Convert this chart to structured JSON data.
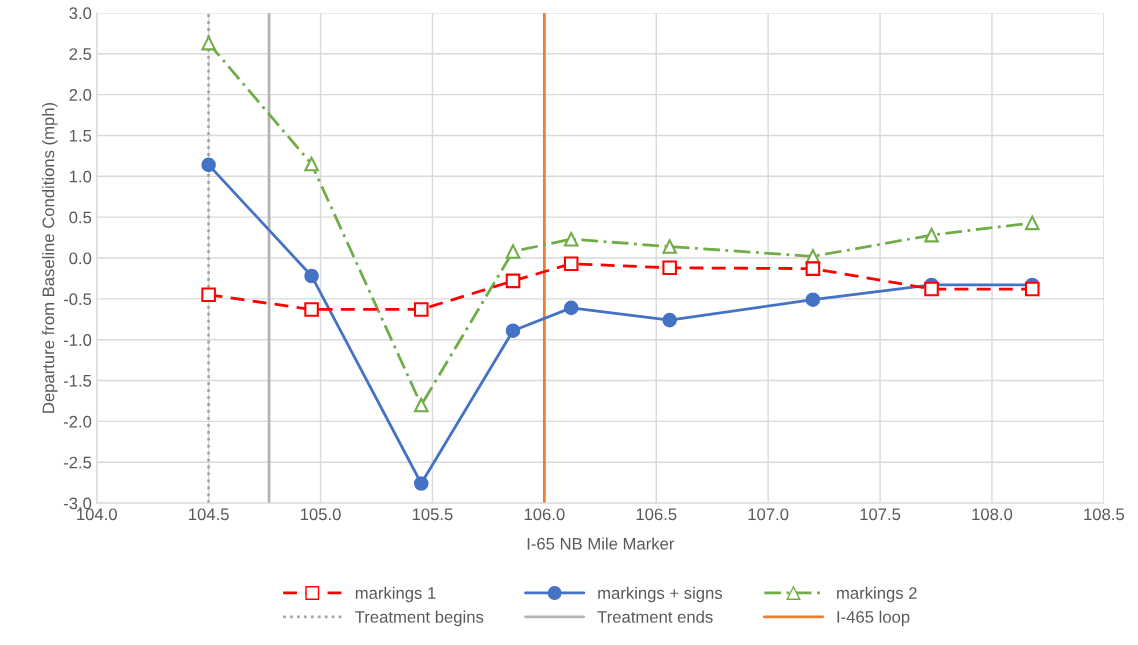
{
  "chart_data": {
    "type": "line",
    "xlabel": "I-65 NB Mile Marker",
    "ylabel": "Departure from Baseline Conditions (mph)",
    "x": [
      104.5,
      104.96,
      105.45,
      105.86,
      106.12,
      106.56,
      107.2,
      107.73,
      108.18
    ],
    "series": [
      {
        "name": "markings 1",
        "color": "#ff0000",
        "marker": "square",
        "line_style": "dashed",
        "values": [
          -0.45,
          -0.63,
          -0.63,
          -0.28,
          -0.07,
          -0.12,
          -0.13,
          -0.38,
          -0.38
        ]
      },
      {
        "name": "markings + signs",
        "color": "#4472c4",
        "marker": "circle",
        "line_style": "solid",
        "values": [
          1.14,
          -0.22,
          -2.76,
          -0.89,
          -0.61,
          -0.76,
          -0.51,
          -0.33,
          -0.33
        ]
      },
      {
        "name": "markings 2",
        "color": "#70ad47",
        "marker": "triangle",
        "line_style": "dashdot",
        "values": [
          2.63,
          1.15,
          -1.8,
          0.08,
          0.23,
          0.14,
          0.02,
          0.28,
          0.43
        ]
      }
    ],
    "ref_lines": [
      {
        "axis": "x",
        "value": 104.5,
        "label": "Treatment begins",
        "color": "#a6a6a6",
        "line_style": "dotted"
      },
      {
        "axis": "x",
        "value": 104.77,
        "label": "Treatment ends",
        "color": "#b4b4b4",
        "line_style": "solid"
      },
      {
        "axis": "x",
        "value": 106.0,
        "label": "I-465 loop",
        "color": "#ed7d31",
        "line_style": "solid"
      }
    ],
    "xlim": [
      104.0,
      108.5
    ],
    "xticks": [
      {
        "value": 104.0,
        "label": "104.0"
      },
      {
        "value": 104.5,
        "label": "104.5"
      },
      {
        "value": 105.0,
        "label": "105.0"
      },
      {
        "value": 105.5,
        "label": "105.5"
      },
      {
        "value": 106.0,
        "label": "106.0"
      },
      {
        "value": 106.5,
        "label": "106.5"
      },
      {
        "value": 107.0,
        "label": "107.0"
      },
      {
        "value": 107.5,
        "label": "107.5"
      },
      {
        "value": 108.0,
        "label": "108.0"
      },
      {
        "value": 108.5,
        "label": "108.5"
      }
    ],
    "ylim": [
      -3.0,
      3.0
    ],
    "yticks": [
      {
        "value": -3.0,
        "label": "-3.0"
      },
      {
        "value": -2.5,
        "label": "-2.5"
      },
      {
        "value": -2.0,
        "label": "-2.0"
      },
      {
        "value": -1.5,
        "label": "-1.5"
      },
      {
        "value": -1.0,
        "label": "-1.0"
      },
      {
        "value": -0.5,
        "label": "-0.5"
      },
      {
        "value": 0.0,
        "label": "0.0"
      },
      {
        "value": 0.5,
        "label": "0.5"
      },
      {
        "value": 1.0,
        "label": "1.0"
      },
      {
        "value": 1.5,
        "label": "1.5"
      },
      {
        "value": 2.0,
        "label": "2.0"
      },
      {
        "value": 2.5,
        "label": "2.5"
      },
      {
        "value": 3.0,
        "label": "3.0"
      }
    ],
    "grid": true,
    "legend": "bottom"
  }
}
